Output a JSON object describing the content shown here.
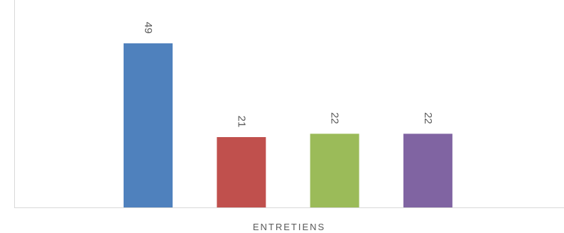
{
  "chart_data": {
    "type": "bar",
    "categories": [
      "ENTRETIENS"
    ],
    "series": [
      {
        "values": [
          49
        ],
        "color": "#4f81bd"
      },
      {
        "values": [
          21
        ],
        "color": "#c0504d"
      },
      {
        "values": [
          22
        ],
        "color": "#9bbb59"
      },
      {
        "values": [
          22
        ],
        "color": "#8064a2"
      }
    ],
    "ylim": [
      0,
      49
    ],
    "grid": false,
    "data_labels": true
  },
  "axis_color": "#d9d9d9",
  "label_color": "#595959"
}
